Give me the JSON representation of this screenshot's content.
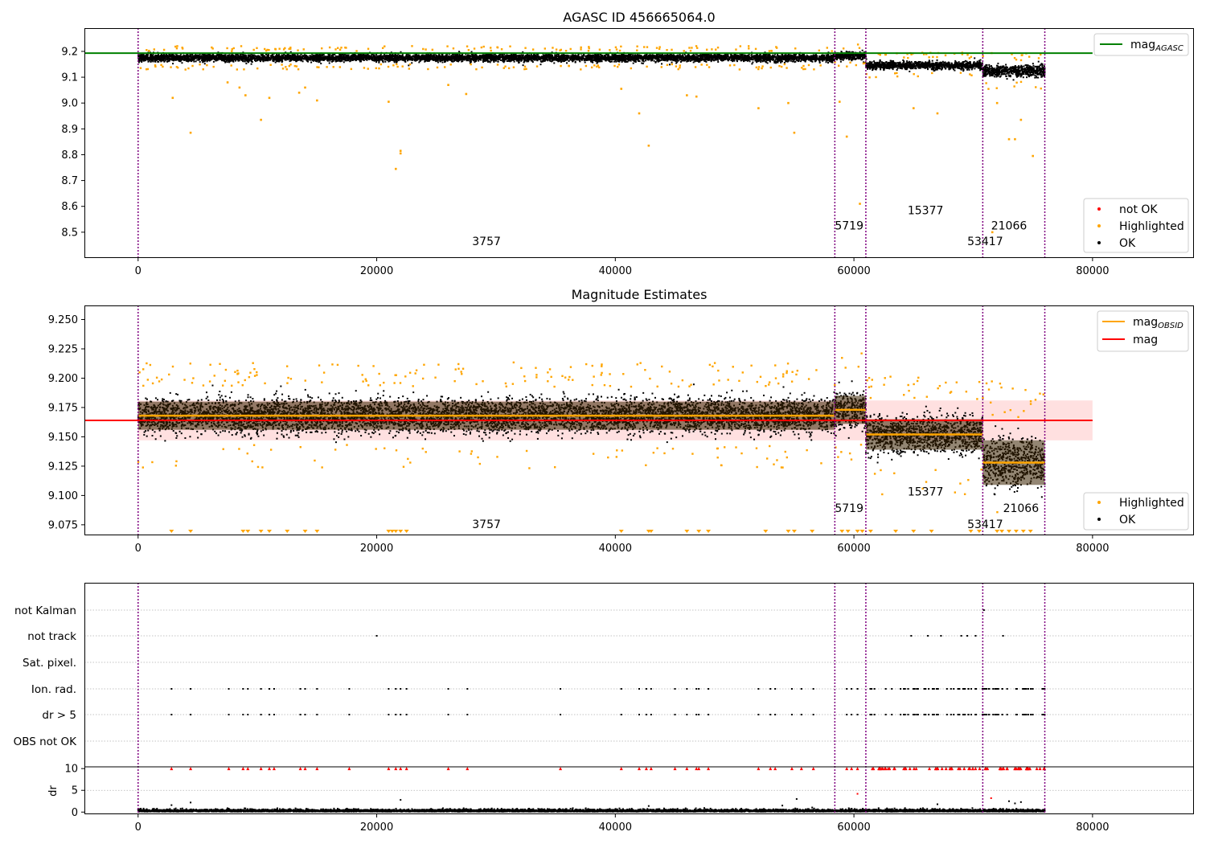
{
  "colors": {
    "agasc_line": "#008000",
    "ok": "#000000",
    "highlighted": "#ffa500",
    "not_ok": "#ff0000",
    "mag_line": "#ff0000",
    "mag_band": "#ffcccc",
    "obsid_line": "#ffa500",
    "boundary": "#800080",
    "grid": "#b0b0b0"
  },
  "chart_data": [
    {
      "type": "scatter",
      "title": "AGASC ID 456665064.0",
      "xlim": [
        -4500,
        88500
      ],
      "ylim": [
        8.4,
        9.29
      ],
      "x_ticks": [
        0,
        20000,
        40000,
        60000,
        80000
      ],
      "y_ticks": [
        8.5,
        8.6,
        8.7,
        8.8,
        8.9,
        9.0,
        9.1,
        9.2
      ],
      "agasc_mag": 9.193,
      "legend_top": [
        {
          "label": "mag",
          "sub": "AGASC",
          "color": "#008000"
        }
      ],
      "legend_bottom": [
        {
          "label": "not OK",
          "color": "#ff0000"
        },
        {
          "label": "Highlighted",
          "color": "#ffa500"
        },
        {
          "label": "OK",
          "color": "#000000"
        }
      ],
      "boundaries": [
        0,
        58400,
        61000,
        70800,
        76000
      ],
      "segments": [
        {
          "x0": 0,
          "x1": 58400,
          "mean": 9.175,
          "spread": 0.013
        },
        {
          "x0": 58400,
          "x1": 61000,
          "mean": 9.183,
          "spread": 0.013
        },
        {
          "x0": 61000,
          "x1": 70800,
          "mean": 9.146,
          "spread": 0.014
        },
        {
          "x0": 70800,
          "x1": 76000,
          "mean": 9.124,
          "spread": 0.02
        }
      ],
      "highlighted_outliers": [
        [
          2900,
          9.02
        ],
        [
          4400,
          8.885
        ],
        [
          7500,
          9.08
        ],
        [
          8500,
          9.06
        ],
        [
          9000,
          9.03
        ],
        [
          10300,
          8.935
        ],
        [
          11000,
          9.02
        ],
        [
          13500,
          9.04
        ],
        [
          14000,
          9.06
        ],
        [
          15000,
          9.01
        ],
        [
          21000,
          9.005
        ],
        [
          21600,
          8.745
        ],
        [
          22000,
          8.815
        ],
        [
          22000,
          8.805
        ],
        [
          26000,
          9.07
        ],
        [
          27500,
          9.035
        ],
        [
          40500,
          9.055
        ],
        [
          42000,
          8.96
        ],
        [
          42800,
          8.835
        ],
        [
          46000,
          9.03
        ],
        [
          46800,
          9.025
        ],
        [
          52000,
          8.98
        ],
        [
          54500,
          9.0
        ],
        [
          55000,
          8.885
        ],
        [
          58800,
          9.005
        ],
        [
          59400,
          8.87
        ],
        [
          60500,
          8.61
        ],
        [
          65000,
          8.98
        ],
        [
          67000,
          8.96
        ],
        [
          72000,
          9.0
        ],
        [
          73000,
          8.86
        ],
        [
          73500,
          8.86
        ],
        [
          74000,
          8.935
        ],
        [
          75000,
          8.795
        ],
        [
          71600,
          8.5
        ]
      ],
      "annotations": [
        {
          "x": 28000,
          "y": 8.45,
          "text": "3757"
        },
        {
          "x": 58400,
          "y": 8.51,
          "text": "5719"
        },
        {
          "x": 64500,
          "y": 8.57,
          "text": "15377"
        },
        {
          "x": 69500,
          "y": 8.45,
          "text": "53417"
        },
        {
          "x": 71500,
          "y": 8.51,
          "text": "21066"
        }
      ]
    },
    {
      "type": "scatter",
      "title": "Magnitude Estimates",
      "xlim": [
        -4500,
        88500
      ],
      "ylim": [
        9.066,
        9.262
      ],
      "x_ticks": [
        0,
        20000,
        40000,
        60000,
        80000
      ],
      "y_ticks": [
        9.075,
        9.1,
        9.125,
        9.15,
        9.175,
        9.2,
        9.225,
        9.25
      ],
      "mag": 9.164,
      "mag_band": [
        9.147,
        9.181
      ],
      "mag_band_xrange": [
        0,
        80000
      ],
      "legend_top": [
        {
          "label": "mag",
          "sub": "OBSID",
          "color": "#ffa500"
        },
        {
          "label": "mag",
          "sub": "",
          "color": "#ff0000"
        }
      ],
      "legend_bottom": [
        {
          "label": "Highlighted",
          "color": "#ffa500"
        },
        {
          "label": "OK",
          "color": "#000000"
        }
      ],
      "boundaries": [
        0,
        58400,
        61000,
        70800,
        76000
      ],
      "segments": [
        {
          "x0": 0,
          "x1": 58400,
          "mean": 9.168,
          "spread": 0.013
        },
        {
          "x0": 58400,
          "x1": 61000,
          "mean": 9.173,
          "spread": 0.014
        },
        {
          "x0": 61000,
          "x1": 70800,
          "mean": 9.152,
          "spread": 0.015
        },
        {
          "x0": 70800,
          "x1": 76000,
          "mean": 9.128,
          "spread": 0.02
        }
      ],
      "obsid_mags": [
        {
          "x0": 0,
          "x1": 58400,
          "mag": 9.168,
          "err": 0.012
        },
        {
          "x0": 58400,
          "x1": 61000,
          "mag": 9.173,
          "err": 0.012
        },
        {
          "x0": 61000,
          "x1": 70800,
          "mag": 9.152,
          "err": 0.013
        },
        {
          "x0": 70800,
          "x1": 76000,
          "mag": 9.128,
          "err": 0.019
        }
      ],
      "offscale_low_x": [
        2800,
        4400,
        8800,
        9200,
        10300,
        11000,
        12500,
        14000,
        15000,
        21000,
        21300,
        21600,
        22000,
        22500,
        40500,
        42800,
        43000,
        46000,
        47000,
        47800,
        52600,
        54500,
        55000,
        56500,
        59000,
        59500,
        60300,
        60700,
        61400,
        63500,
        65000,
        66500,
        69800,
        70500,
        72000,
        72400,
        73000,
        73600,
        74200,
        74800
      ],
      "annotations": [
        {
          "x": 28000,
          "y": 9.072,
          "text": "3757"
        },
        {
          "x": 58400,
          "y": 9.086,
          "text": "5719"
        },
        {
          "x": 64500,
          "y": 9.1,
          "text": "15377"
        },
        {
          "x": 69500,
          "y": 9.072,
          "text": "53417"
        },
        {
          "x": 72500,
          "y": 9.086,
          "text": "21066"
        }
      ]
    },
    {
      "type": "scatter",
      "title": "",
      "xlim": [
        -4500,
        88500
      ],
      "x_ticks": [
        0,
        20000,
        40000,
        60000,
        80000
      ],
      "flag_labels": [
        "not Kalman",
        "not track",
        "Sat. pixel.",
        "Ion. rad.",
        "dr > 5",
        "OBS not OK"
      ],
      "dr_ylabel": "dr",
      "dr_ylim": [
        -0.5,
        10.4
      ],
      "dr_ticks": [
        0,
        5,
        10
      ],
      "boundaries": [
        0,
        58400,
        61000,
        70800,
        76000
      ],
      "flag_events": {
        "not Kalman": [
          70900
        ],
        "not track": [
          20000,
          64800,
          66200,
          67300,
          69000,
          69500,
          70200,
          72500
        ],
        "Ion. rad.": [
          2800,
          4400,
          7600,
          8800,
          9200,
          10300,
          11000,
          11400,
          13600,
          14000,
          15000,
          17700,
          21000,
          21600,
          22000,
          22500,
          26000,
          27600,
          35400,
          40500,
          42000,
          42600,
          43000,
          45000,
          46000,
          46800,
          47000,
          47800,
          52000,
          53000,
          53400,
          54800,
          55600,
          56600,
          59400,
          59800,
          60300
        ],
        "dr > 5": [
          2800,
          4400,
          7600,
          8800,
          9200,
          10300,
          11000,
          11400,
          13600,
          14000,
          15000,
          17700,
          21000,
          21600,
          22000,
          22500,
          26000,
          27600,
          35400,
          40500,
          42000,
          42600,
          43000,
          45000,
          46000,
          46800,
          47000,
          47800,
          52000,
          53000,
          53400,
          54800,
          55600,
          56600,
          59400,
          59800,
          60300
        ]
      },
      "dense_flag_x_range": [
        61000,
        76000
      ],
      "dr_outliers": [
        [
          4400,
          2.2
        ],
        [
          2800,
          1.6
        ],
        [
          22000,
          2.8
        ],
        [
          42800,
          1.4
        ],
        [
          54000,
          1.5
        ],
        [
          55200,
          3.0
        ],
        [
          60300,
          4.2
        ],
        [
          67000,
          1.8
        ],
        [
          71500,
          3.2
        ],
        [
          73000,
          2.5
        ],
        [
          73500,
          2.0
        ],
        [
          74000,
          2.3
        ]
      ]
    }
  ]
}
